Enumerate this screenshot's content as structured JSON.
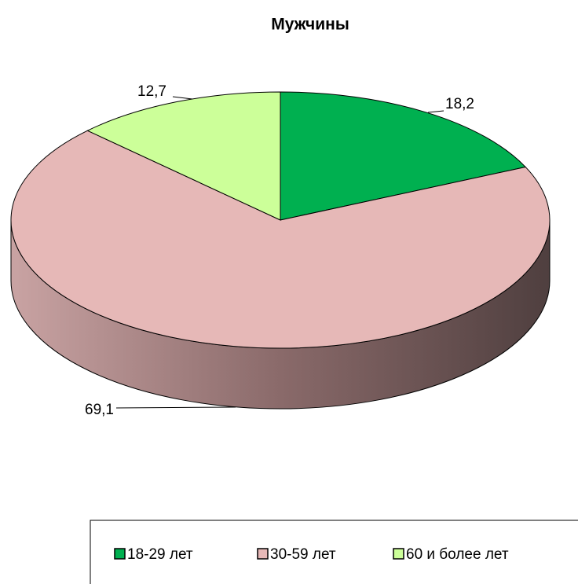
{
  "chart_data": {
    "type": "pie",
    "title": "Мужчины",
    "categories": [
      "18-29 лет",
      "30-59 лет",
      "60 и более лет"
    ],
    "values": [
      18.2,
      69.1,
      12.7
    ],
    "value_labels": [
      "18,2",
      "69,1",
      "12,7"
    ],
    "colors": [
      "#00b050",
      "#e6b8b7",
      "#ccff99"
    ],
    "legend": "bottom"
  }
}
